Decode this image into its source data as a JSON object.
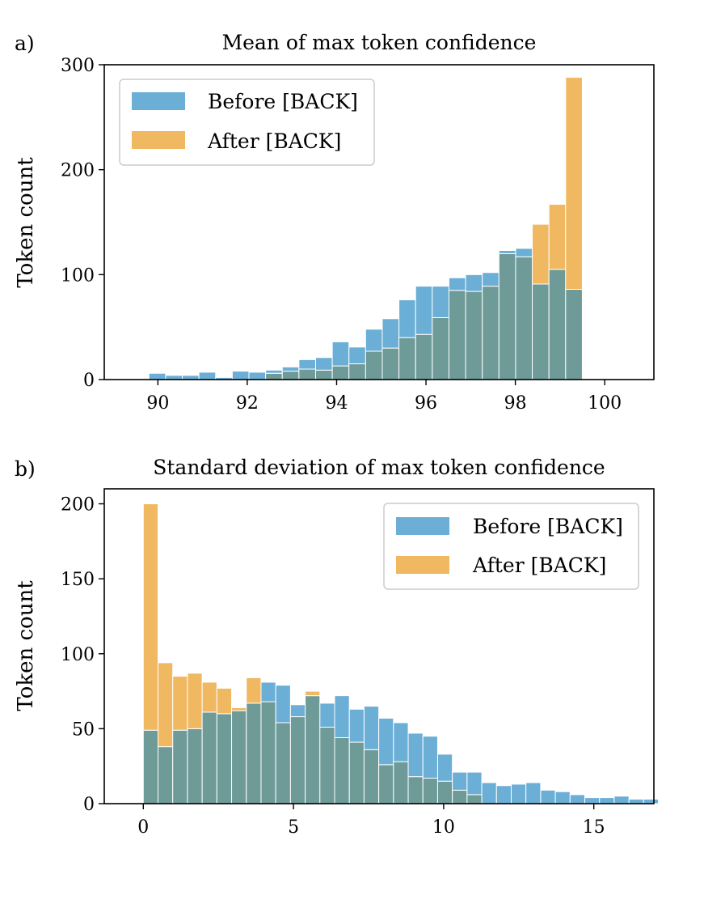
{
  "colors": {
    "before": "#6baed6",
    "after": "#f0b860",
    "overlap": "#6e9a97"
  },
  "chart_data": [
    {
      "type": "bar",
      "panel_label": "a)",
      "title": "Mean of max token confidence",
      "xlabel": "",
      "ylabel": "Token count",
      "xlim": [
        88.8,
        101.1
      ],
      "ylim": [
        0,
        300
      ],
      "xticks": [
        90,
        92,
        94,
        96,
        98,
        100
      ],
      "yticks": [
        0,
        100,
        200,
        300
      ],
      "bin_start": 89.8,
      "bin_width": 0.373,
      "legend_position": "top-left",
      "series": [
        {
          "name": "Before [BACK]",
          "values": [
            6,
            4,
            4,
            7,
            2,
            8,
            7,
            9,
            12,
            19,
            21,
            36,
            31,
            48,
            58,
            76,
            89,
            89,
            97,
            100,
            102,
            123,
            125,
            91,
            105,
            86
          ]
        },
        {
          "name": "After [BACK]",
          "values": [
            0,
            0,
            0,
            0,
            0,
            0,
            0,
            6,
            8,
            10,
            9,
            13,
            15,
            27,
            30,
            40,
            43,
            59,
            85,
            84,
            89,
            120,
            117,
            148,
            167,
            288
          ]
        }
      ]
    },
    {
      "type": "bar",
      "panel_label": "b)",
      "title": "Standard deviation of max token confidence",
      "xlabel": "",
      "ylabel": "Token count",
      "xlim": [
        -1.3,
        17.0
      ],
      "ylim": [
        0,
        210
      ],
      "xticks": [
        0,
        5,
        10,
        15
      ],
      "yticks": [
        0,
        50,
        100,
        150,
        200
      ],
      "bin_start": 0.0,
      "bin_width": 0.49,
      "legend_position": "top-right",
      "series": [
        {
          "name": "Before [BACK]",
          "values": [
            49,
            38,
            49,
            50,
            61,
            60,
            62,
            67,
            81,
            79,
            66,
            72,
            67,
            72,
            63,
            65,
            57,
            54,
            47,
            45,
            33,
            21,
            21,
            14,
            12,
            13,
            14,
            9,
            8,
            6,
            4,
            4,
            5,
            3,
            3
          ]
        },
        {
          "name": "After [BACK]",
          "values": [
            200,
            94,
            85,
            87,
            81,
            77,
            64,
            84,
            68,
            54,
            58,
            75,
            51,
            44,
            41,
            36,
            26,
            28,
            18,
            17,
            15,
            9,
            6,
            0,
            0,
            0,
            0,
            0,
            0,
            0,
            0,
            0,
            0,
            0,
            0
          ]
        }
      ]
    }
  ]
}
